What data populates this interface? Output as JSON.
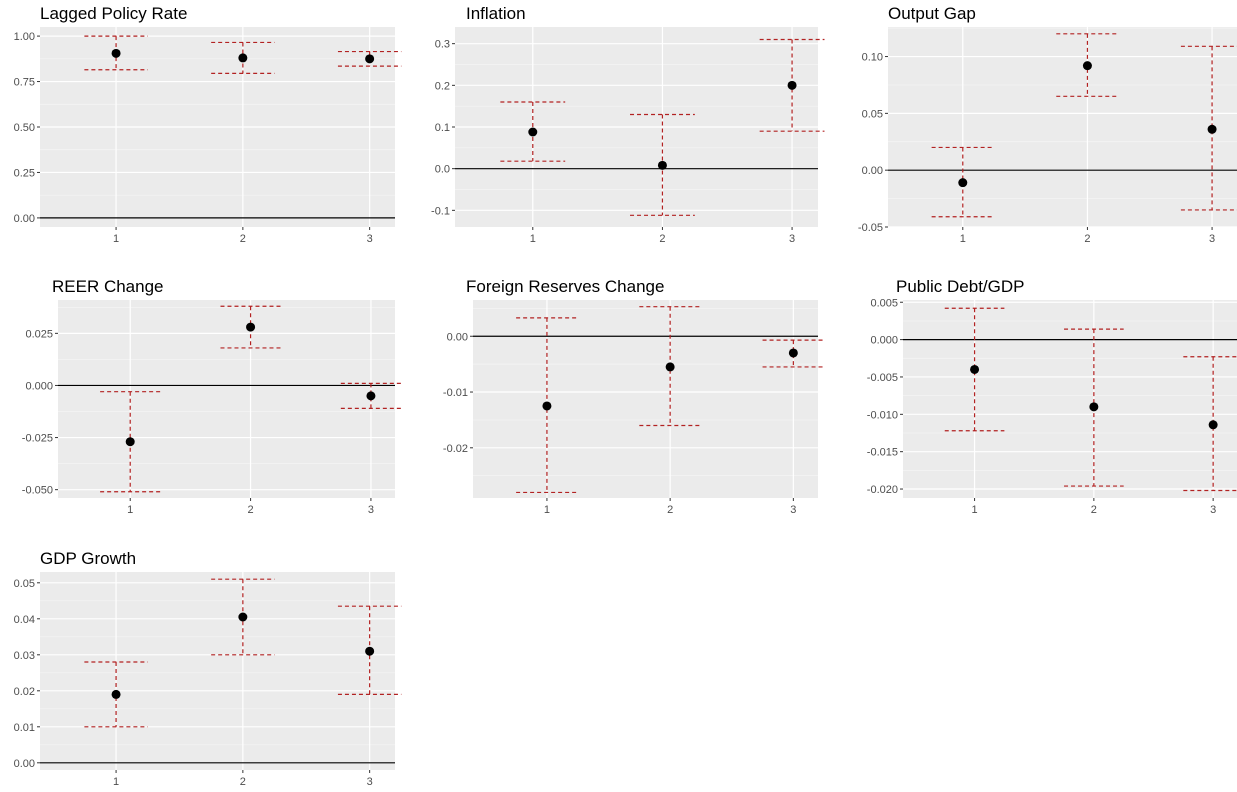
{
  "chart_data": [
    {
      "type": "scatter",
      "title": "Lagged Policy Rate",
      "xlabel": "",
      "ylabel": "",
      "x": [
        1,
        2,
        3
      ],
      "estimate": [
        0.905,
        0.88,
        0.875
      ],
      "lower": [
        0.815,
        0.795,
        0.835
      ],
      "upper": [
        1.0,
        0.965,
        0.915
      ],
      "ylim": [
        -0.05,
        1.05
      ],
      "yticks": [
        0.0,
        0.25,
        0.5,
        0.75,
        1.0
      ],
      "ytick_labels": [
        "0.00",
        "0.25",
        "0.50",
        "0.75",
        "1.00"
      ],
      "xtick_labels": [
        "1",
        "2",
        "3"
      ],
      "zero_line": true,
      "grid": true
    },
    {
      "type": "scatter",
      "title": "Inflation",
      "xlabel": "",
      "ylabel": "",
      "x": [
        1,
        2,
        3
      ],
      "estimate": [
        0.088,
        0.008,
        0.2
      ],
      "lower": [
        0.018,
        -0.112,
        0.09
      ],
      "upper": [
        0.16,
        0.13,
        0.31
      ],
      "ylim": [
        -0.14,
        0.34
      ],
      "yticks": [
        -0.1,
        0.0,
        0.1,
        0.2,
        0.3
      ],
      "ytick_labels": [
        "-0.1",
        "0.0",
        "0.1",
        "0.2",
        "0.3"
      ],
      "xtick_labels": [
        "1",
        "2",
        "3"
      ],
      "zero_line": true,
      "grid": true
    },
    {
      "type": "scatter",
      "title": "Output Gap",
      "xlabel": "",
      "ylabel": "",
      "x": [
        1,
        2,
        3
      ],
      "estimate": [
        -0.011,
        0.092,
        0.036
      ],
      "lower": [
        -0.041,
        0.065,
        -0.035
      ],
      "upper": [
        0.02,
        0.12,
        0.109
      ],
      "ylim": [
        -0.05,
        0.126
      ],
      "yticks": [
        -0.05,
        0.0,
        0.05,
        0.1
      ],
      "ytick_labels": [
        "-0.05",
        "0.00",
        "0.05",
        "0.10"
      ],
      "xtick_labels": [
        "1",
        "2",
        "3"
      ],
      "zero_line": true,
      "grid": true
    },
    {
      "type": "scatter",
      "title": "REER Change",
      "xlabel": "",
      "ylabel": "",
      "x": [
        1,
        2,
        3
      ],
      "estimate": [
        -0.027,
        0.028,
        -0.005
      ],
      "lower": [
        -0.051,
        0.018,
        -0.011
      ],
      "upper": [
        -0.003,
        0.038,
        0.001
      ],
      "ylim": [
        -0.054,
        0.041
      ],
      "yticks": [
        -0.05,
        -0.025,
        0.0,
        0.025
      ],
      "ytick_labels": [
        "-0.050",
        "-0.025",
        "0.000",
        "0.025"
      ],
      "xtick_labels": [
        "1",
        "2",
        "3"
      ],
      "zero_line": true,
      "grid": true
    },
    {
      "type": "scatter",
      "title": "Foreign Reserves Change",
      "xlabel": "",
      "ylabel": "",
      "x": [
        1,
        2,
        3
      ],
      "estimate": [
        -0.0125,
        -0.0055,
        -0.003
      ],
      "lower": [
        -0.028,
        -0.016,
        -0.0055
      ],
      "upper": [
        0.0033,
        0.0053,
        -0.0007
      ],
      "ylim": [
        -0.029,
        0.0065
      ],
      "yticks": [
        -0.02,
        -0.01,
        0.0
      ],
      "ytick_labels": [
        "-0.02",
        "-0.01",
        "0.00"
      ],
      "xtick_labels": [
        "1",
        "2",
        "3"
      ],
      "zero_line": true,
      "grid": true
    },
    {
      "type": "scatter",
      "title": "Public Debt/GDP",
      "xlabel": "",
      "ylabel": "",
      "x": [
        1,
        2,
        3
      ],
      "estimate": [
        -0.004,
        -0.009,
        -0.0114
      ],
      "lower": [
        -0.0122,
        -0.0196,
        -0.0202
      ],
      "upper": [
        0.0042,
        0.0014,
        -0.0023
      ],
      "ylim": [
        -0.0212,
        0.0053
      ],
      "yticks": [
        -0.02,
        -0.015,
        -0.01,
        -0.005,
        0.0,
        0.005
      ],
      "ytick_labels": [
        "-0.020",
        "-0.015",
        "-0.010",
        "-0.005",
        "0.000",
        "0.005"
      ],
      "xtick_labels": [
        "1",
        "2",
        "3"
      ],
      "zero_line": true,
      "grid": true
    },
    {
      "type": "scatter",
      "title": "GDP Growth",
      "xlabel": "",
      "ylabel": "",
      "x": [
        1,
        2,
        3
      ],
      "estimate": [
        0.019,
        0.0405,
        0.031
      ],
      "lower": [
        0.01,
        0.03,
        0.019
      ],
      "upper": [
        0.028,
        0.051,
        0.0435
      ],
      "ylim": [
        -0.002,
        0.053
      ],
      "yticks": [
        0.0,
        0.01,
        0.02,
        0.03,
        0.04,
        0.05
      ],
      "ytick_labels": [
        "0.00",
        "0.01",
        "0.02",
        "0.03",
        "0.04",
        "0.05"
      ],
      "xtick_labels": [
        "1",
        "2",
        "3"
      ],
      "zero_line": true,
      "grid": true
    }
  ],
  "colors": {
    "panel_background": "#ebebeb",
    "grid_major": "#ffffff",
    "grid_minor": "#f5f5f5",
    "interval": "#b22222",
    "point": "#000000",
    "zero_line": "#000000",
    "tick_label": "#4d4d4d"
  }
}
